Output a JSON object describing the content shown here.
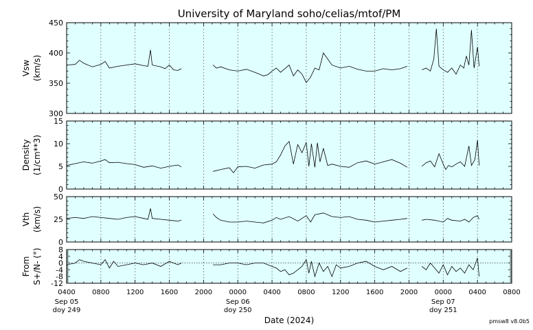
{
  "chart_data": {
    "type": "line",
    "title": "University of Maryland  soho/celias/mtof/PM",
    "xlabel": "Date (2024)",
    "version": "pmsw8 v8.0b5",
    "plot_background": "#e0ffff",
    "x_start_hours": 4,
    "x_end_hours": 56,
    "x_ticks": [
      {
        "hour": 4,
        "label": "0400"
      },
      {
        "hour": 8,
        "label": "0800"
      },
      {
        "hour": 12,
        "label": "1200"
      },
      {
        "hour": 16,
        "label": "1600"
      },
      {
        "hour": 20,
        "label": "2000"
      },
      {
        "hour": 24,
        "label": "0000",
        "date": "Sep 06",
        "doy": "doy 250"
      },
      {
        "hour": 28,
        "label": "0400"
      },
      {
        "hour": 32,
        "label": "0800"
      },
      {
        "hour": 36,
        "label": "1200"
      },
      {
        "hour": 40,
        "label": "1600"
      },
      {
        "hour": 44,
        "label": "2000"
      },
      {
        "hour": 48,
        "label": "0000",
        "date": "Sep 07",
        "doy": "doy 251"
      },
      {
        "hour": 52,
        "label": "0400"
      },
      {
        "hour": 56,
        "label": "0800"
      }
    ],
    "x_start_date": "Sep 05",
    "x_start_doy": "doy 249",
    "grid": "vertical dotted",
    "panels": [
      {
        "id": "vsw",
        "ylabel": [
          "Vsw",
          "(km/s)"
        ],
        "ylim": [
          300,
          450
        ],
        "yticks": [
          300,
          350,
          400,
          450
        ],
        "segments": [
          {
            "x": [
              4,
              5,
              5.5,
              6,
              7,
              8,
              8.5,
              9,
              10,
              11,
              12,
              13,
              13.5,
              13.8,
              14,
              15,
              15.5,
              16,
              16.5,
              17,
              17.4
            ],
            "y": [
              380,
              381,
              388,
              383,
              377,
              381,
              386,
              375,
              378,
              380,
              382,
              379,
              378,
              405,
              380,
              377,
              374,
              380,
              372,
              371,
              374
            ]
          },
          {
            "x": [
              21.1,
              21.5,
              22,
              23,
              24,
              25,
              26,
              27,
              27.5,
              28,
              28.5,
              29,
              30,
              30.5,
              31,
              31.5,
              32,
              32.5,
              33,
              33.5,
              34,
              35,
              36,
              37,
              38,
              39,
              40,
              41,
              42,
              43,
              43.8
            ],
            "y": [
              380,
              375,
              377,
              372,
              370,
              373,
              368,
              362,
              364,
              370,
              375,
              368,
              380,
              362,
              372,
              365,
              351,
              360,
              375,
              372,
              400,
              380,
              375,
              378,
              373,
              370,
              370,
              374,
              372,
              374,
              378
            ]
          },
          {
            "x": [
              45.5,
              46,
              46.5,
              46.9,
              47.2,
              47.5,
              48,
              48.5,
              49,
              49.5,
              50,
              50.4,
              50.7,
              51,
              51.3,
              51.6,
              52,
              52.2
            ],
            "y": [
              372,
              375,
              370,
              390,
              440,
              378,
              372,
              368,
              375,
              365,
              380,
              375,
              395,
              380,
              438,
              375,
              410,
              378
            ]
          }
        ]
      },
      {
        "id": "density",
        "ylabel": [
          "Density",
          "(1/cm**3)"
        ],
        "ylim": [
          0,
          15
        ],
        "yticks": [
          0,
          5,
          10,
          15
        ],
        "segments": [
          {
            "x": [
              4,
              5,
              6,
              7,
              8,
              8.5,
              9,
              10,
              11,
              12,
              13,
              14,
              15,
              16,
              17,
              17.4
            ],
            "y": [
              5.2,
              5.6,
              6.0,
              5.7,
              6.2,
              6.5,
              5.8,
              5.9,
              5.6,
              5.4,
              4.8,
              5.1,
              4.6,
              5.0,
              5.3,
              4.9
            ]
          },
          {
            "x": [
              21.1,
              22,
              23,
              23.5,
              24,
              25,
              26,
              27,
              28,
              28.5,
              29,
              29.5,
              30,
              30.5,
              31,
              31.5,
              32,
              32.3,
              32.6,
              33,
              33.3,
              33.6,
              34,
              34.5,
              35,
              36,
              37,
              38,
              39,
              40,
              41,
              42,
              43,
              43.8
            ],
            "y": [
              3.9,
              4.3,
              4.7,
              3.6,
              4.9,
              5.0,
              4.6,
              5.3,
              5.5,
              6.0,
              7.5,
              9.5,
              10.5,
              5.5,
              9.8,
              8.0,
              10.3,
              5.0,
              10.0,
              4.8,
              10.2,
              6.0,
              9.0,
              5.2,
              5.5,
              5.0,
              4.8,
              5.8,
              6.2,
              5.5,
              6.0,
              6.5,
              5.7,
              4.8
            ]
          },
          {
            "x": [
              45.5,
              46,
              46.5,
              47,
              47.5,
              48,
              48.3,
              48.6,
              49,
              49.5,
              50,
              50.5,
              51,
              51.3,
              51.7,
              52,
              52.2
            ],
            "y": [
              5.0,
              5.8,
              6.2,
              4.9,
              7.8,
              5.5,
              4.3,
              5.2,
              4.9,
              5.5,
              6.0,
              5.0,
              9.5,
              5.2,
              6.5,
              10.8,
              5.2
            ]
          }
        ]
      },
      {
        "id": "vth",
        "ylabel": [
          "Vth",
          "(km/s)"
        ],
        "ylim": [
          0,
          50
        ],
        "yticks": [
          0,
          25,
          50
        ],
        "segments": [
          {
            "x": [
              4,
              5,
              6,
              7,
              8,
              9,
              10,
              11,
              12,
              13,
              13.5,
              13.8,
              14,
              15,
              16,
              17,
              17.4
            ],
            "y": [
              26,
              27,
              26,
              28,
              27,
              26,
              25,
              27,
              28,
              26,
              25,
              37,
              26,
              25,
              24,
              23,
              24
            ]
          },
          {
            "x": [
              21.1,
              21.5,
              22,
              23,
              24,
              25,
              26,
              27,
              28,
              28.5,
              29,
              30,
              31,
              32,
              32.5,
              33,
              34,
              35,
              36,
              37,
              38,
              39,
              40,
              41,
              42,
              43,
              43.8
            ],
            "y": [
              31,
              27,
              24,
              22,
              22,
              23,
              22,
              21,
              24,
              27,
              25,
              28,
              23,
              29,
              22,
              30,
              32,
              28,
              27,
              28,
              25,
              24,
              22,
              23,
              24,
              25,
              26
            ]
          },
          {
            "x": [
              45.5,
              46,
              47,
              48,
              48.5,
              49,
              50,
              50.5,
              51,
              51.5,
              52,
              52.2
            ],
            "y": [
              24,
              25,
              24,
              22,
              26,
              24,
              23,
              25,
              22,
              27,
              29,
              25
            ]
          }
        ]
      },
      {
        "id": "from",
        "ylabel": [
          "From",
          "S+/N- (°)"
        ],
        "ylim": [
          -12,
          8
        ],
        "yticks": [
          -12,
          -8,
          -4,
          0,
          4,
          8
        ],
        "zero_line": true,
        "segments": [
          {
            "x": [
              4,
              5,
              5.5,
              6,
              7,
              8,
              8.5,
              9,
              9.5,
              10,
              11,
              12,
              13,
              14,
              15,
              16,
              17,
              17.4
            ],
            "y": [
              -1,
              0,
              2,
              1,
              0,
              -1,
              2,
              -3,
              1,
              -2,
              -1,
              0,
              -1,
              0,
              -2,
              1,
              -1,
              0
            ]
          },
          {
            "x": [
              21.1,
              22,
              23,
              24,
              25,
              26,
              27,
              28,
              28.5,
              29,
              29.5,
              30,
              30.5,
              31,
              31.5,
              32,
              32.3,
              32.6,
              33,
              33.5,
              34,
              34.5,
              35,
              35.5,
              36,
              37,
              38,
              39,
              40,
              41,
              42,
              43,
              43.8
            ],
            "y": [
              -1,
              -1,
              0,
              0,
              -1,
              0,
              0,
              -2,
              -3,
              -5,
              -4,
              -7,
              -6,
              -4,
              -2,
              2,
              -6,
              1,
              -8,
              0,
              -5,
              -2,
              -8,
              -1,
              -3,
              -2,
              0,
              1,
              -2,
              -4,
              -2,
              -5,
              -3
            ]
          },
          {
            "x": [
              45.5,
              46,
              46.5,
              47,
              47.5,
              48,
              48.5,
              49,
              49.5,
              50,
              50.5,
              51,
              51.5,
              52,
              52.2
            ],
            "y": [
              -2,
              -4,
              0,
              -3,
              -6,
              -1,
              -7,
              -2,
              -5,
              -3,
              -6,
              -1,
              -4,
              3,
              -8
            ]
          }
        ]
      }
    ]
  }
}
